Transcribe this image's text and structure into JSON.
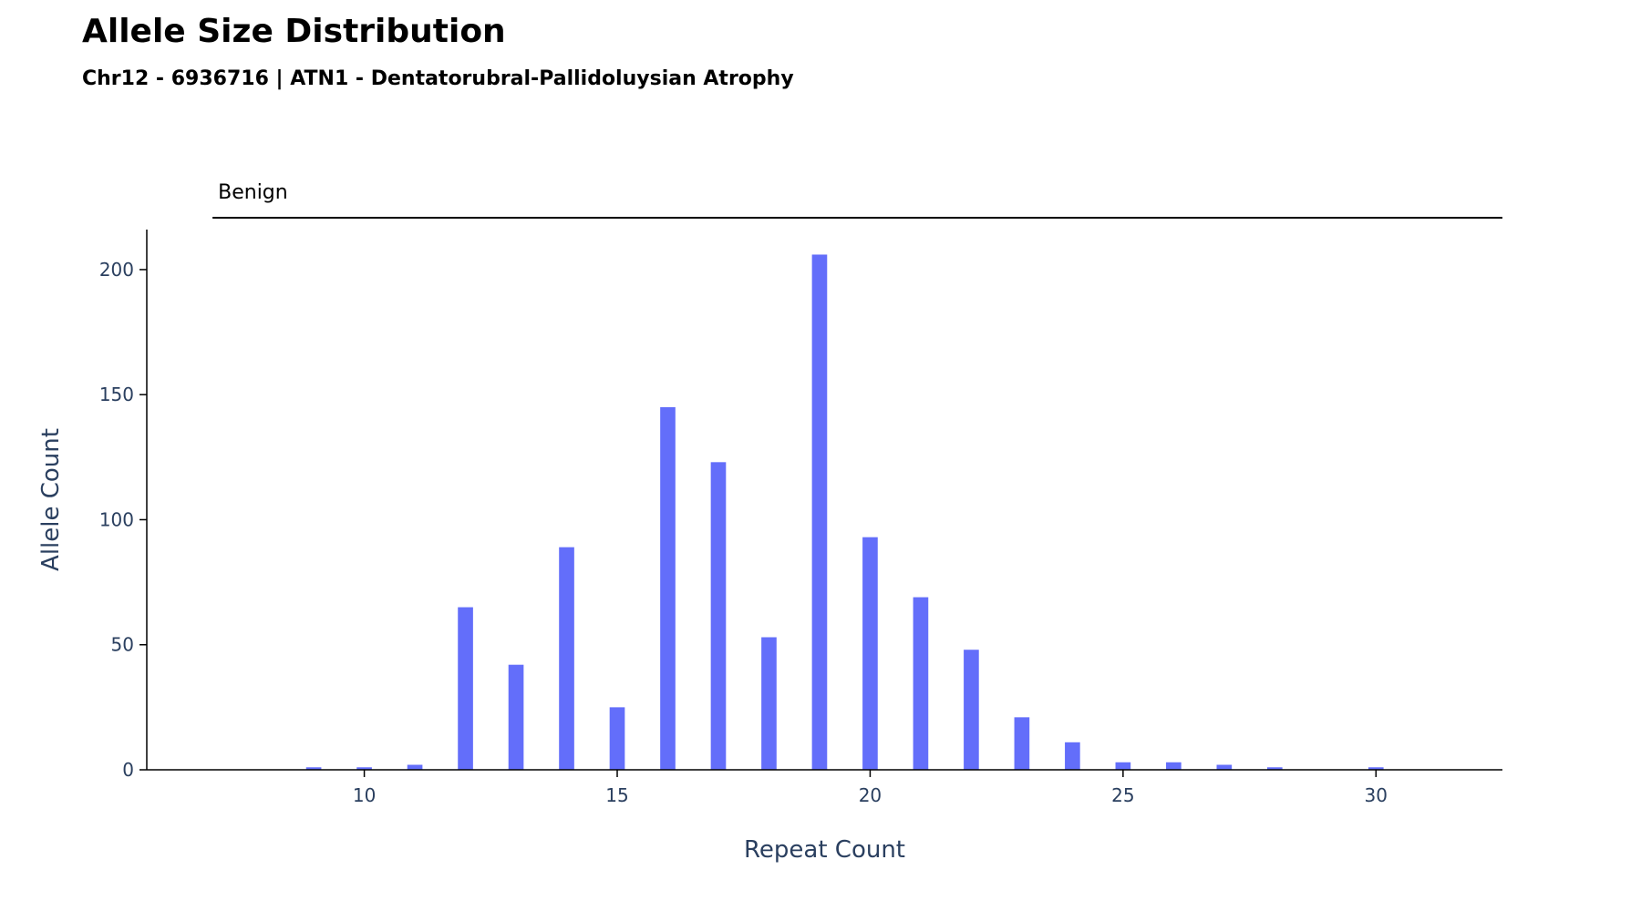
{
  "chart_data": {
    "type": "bar",
    "title": "Allele Size Distribution",
    "subtitle": "Chr12 - 6936716 | ATN1 - Dentatorubral-Pallidoluysian Atrophy",
    "xlabel": "Repeat Count",
    "ylabel": "Allele Count",
    "xlim": [
      5.7,
      32.5
    ],
    "ylim": [
      0,
      216
    ],
    "xticks": [
      10,
      15,
      20,
      25,
      30
    ],
    "yticks": [
      0,
      50,
      100,
      150,
      200
    ],
    "grid": false,
    "bar_color": "#636efa",
    "range_bands": [
      {
        "label": "Benign",
        "x_start": 7,
        "x_end": 32.5
      }
    ],
    "x": [
      9,
      10,
      11,
      12,
      13,
      14,
      15,
      16,
      17,
      18,
      19,
      20,
      21,
      22,
      23,
      24,
      25,
      26,
      27,
      28,
      30
    ],
    "values": [
      1,
      1,
      2,
      65,
      42,
      89,
      25,
      145,
      123,
      53,
      206,
      93,
      69,
      48,
      21,
      11,
      3,
      3,
      2,
      1,
      1
    ]
  }
}
